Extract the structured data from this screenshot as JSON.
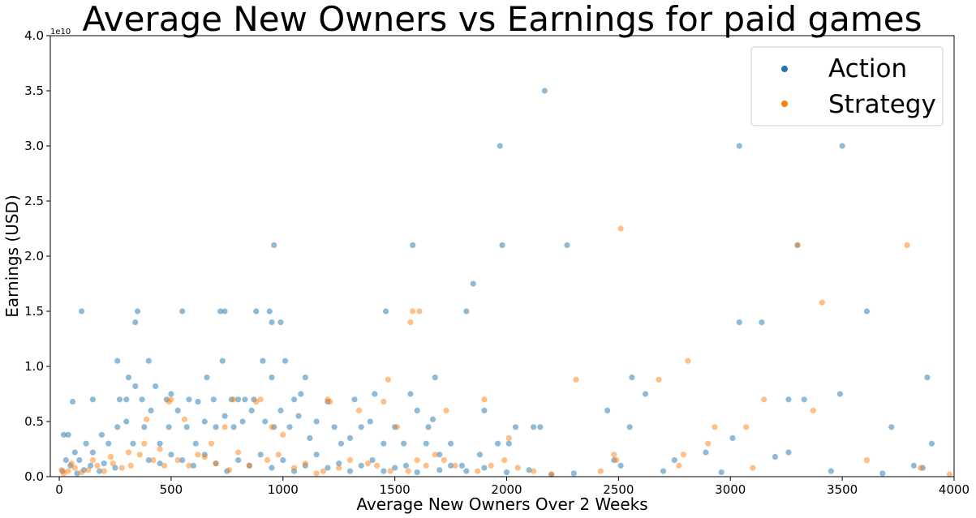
{
  "chart_data": {
    "type": "scatter",
    "title": "Average New Owners vs Earnings for paid games",
    "xlabel": "Average New Owners Over 2 Weeks",
    "ylabel": "Earnings (USD)",
    "y_offset_label": "1e10",
    "xlim": [
      -40,
      4000
    ],
    "ylim": [
      0,
      4.0
    ],
    "xticks": [
      0,
      500,
      1000,
      1500,
      2000,
      2500,
      3000,
      3500,
      4000
    ],
    "yticks": [
      0.0,
      0.5,
      1.0,
      1.5,
      2.0,
      2.5,
      3.0,
      3.5,
      4.0
    ],
    "ytick_labels": [
      "0.0",
      "0.5",
      "1.0",
      "1.5",
      "2.0",
      "2.5",
      "3.0",
      "3.5",
      "4.0"
    ],
    "grid": false,
    "legend_position": "top-right",
    "series": [
      {
        "name": "Action",
        "color": "#1f77b4",
        "points": [
          [
            100,
            1.5
          ],
          [
            350,
            1.5
          ],
          [
            340,
            1.4
          ],
          [
            550,
            1.5
          ],
          [
            720,
            1.5
          ],
          [
            740,
            1.5
          ],
          [
            880,
            1.5
          ],
          [
            940,
            1.5
          ],
          [
            960,
            2.1
          ],
          [
            950,
            1.4
          ],
          [
            990,
            1.4
          ],
          [
            260,
            1.05
          ],
          [
            400,
            1.05
          ],
          [
            730,
            1.05
          ],
          [
            910,
            1.05
          ],
          [
            1010,
            1.05
          ],
          [
            310,
            0.9
          ],
          [
            660,
            0.9
          ],
          [
            950,
            0.9
          ],
          [
            1100,
            0.9
          ],
          [
            340,
            0.82
          ],
          [
            430,
            0.82
          ],
          [
            60,
            0.68
          ],
          [
            40,
            0.38
          ],
          [
            20,
            0.38
          ],
          [
            150,
            0.7
          ],
          [
            270,
            0.7
          ],
          [
            300,
            0.7
          ],
          [
            370,
            0.7
          ],
          [
            480,
            0.7
          ],
          [
            500,
            0.75
          ],
          [
            580,
            0.7
          ],
          [
            620,
            0.68
          ],
          [
            690,
            0.7
          ],
          [
            770,
            0.7
          ],
          [
            800,
            0.7
          ],
          [
            830,
            0.7
          ],
          [
            870,
            0.7
          ],
          [
            1050,
            0.7
          ],
          [
            1080,
            0.75
          ],
          [
            1200,
            0.68
          ],
          [
            1320,
            0.7
          ],
          [
            1410,
            0.75
          ],
          [
            1460,
            1.5
          ],
          [
            1570,
            0.75
          ],
          [
            1580,
            2.1
          ],
          [
            1650,
            0.45
          ],
          [
            1670,
            0.52
          ],
          [
            1680,
            0.9
          ],
          [
            1820,
            1.5
          ],
          [
            1850,
            1.75
          ],
          [
            1970,
            3.0
          ],
          [
            1980,
            2.1
          ],
          [
            2170,
            3.5
          ],
          [
            2120,
            0.45
          ],
          [
            2150,
            0.45
          ],
          [
            2270,
            2.1
          ],
          [
            2450,
            0.6
          ],
          [
            2560,
            0.9
          ],
          [
            2620,
            0.75
          ],
          [
            2550,
            0.45
          ],
          [
            3040,
            3.0
          ],
          [
            3040,
            1.4
          ],
          [
            3140,
            1.4
          ],
          [
            3300,
            2.1
          ],
          [
            3500,
            3.0
          ],
          [
            3610,
            1.5
          ],
          [
            3490,
            0.75
          ],
          [
            3260,
            0.7
          ],
          [
            3330,
            0.7
          ],
          [
            3720,
            0.45
          ],
          [
            3880,
            0.9
          ],
          [
            3900,
            0.3
          ],
          [
            3010,
            0.35
          ],
          [
            2890,
            0.22
          ],
          [
            3260,
            0.22
          ],
          [
            3200,
            0.18
          ],
          [
            2750,
            0.15
          ],
          [
            2510,
            0.1
          ],
          [
            2700,
            0.05
          ],
          [
            2960,
            0.04
          ],
          [
            3450,
            0.05
          ],
          [
            3680,
            0.03
          ],
          [
            3820,
            0.1
          ],
          [
            3860,
            0.08
          ],
          [
            2040,
            0.45
          ],
          [
            2010,
            0.3
          ],
          [
            1960,
            0.3
          ],
          [
            1900,
            0.6
          ],
          [
            1880,
            0.2
          ],
          [
            1800,
            0.1
          ],
          [
            1750,
            0.3
          ],
          [
            1700,
            0.2
          ],
          [
            1640,
            0.3
          ],
          [
            1600,
            0.6
          ],
          [
            1540,
            0.3
          ],
          [
            1500,
            0.45
          ],
          [
            1450,
            0.3
          ],
          [
            1390,
            0.5
          ],
          [
            1350,
            0.45
          ],
          [
            1300,
            0.35
          ],
          [
            1260,
            0.3
          ],
          [
            1230,
            0.45
          ],
          [
            1150,
            0.5
          ],
          [
            1120,
            0.35
          ],
          [
            1070,
            0.55
          ],
          [
            1030,
            0.45
          ],
          [
            990,
            0.6
          ],
          [
            960,
            0.45
          ],
          [
            920,
            0.5
          ],
          [
            860,
            0.6
          ],
          [
            820,
            0.5
          ],
          [
            780,
            0.45
          ],
          [
            740,
            0.55
          ],
          [
            700,
            0.45
          ],
          [
            650,
            0.5
          ],
          [
            610,
            0.3
          ],
          [
            570,
            0.45
          ],
          [
            530,
            0.6
          ],
          [
            490,
            0.45
          ],
          [
            450,
            0.3
          ],
          [
            410,
            0.6
          ],
          [
            380,
            0.45
          ],
          [
            330,
            0.3
          ],
          [
            300,
            0.5
          ],
          [
            260,
            0.45
          ],
          [
            220,
            0.3
          ],
          [
            190,
            0.38
          ],
          [
            150,
            0.22
          ],
          [
            120,
            0.3
          ],
          [
            90,
            0.15
          ],
          [
            70,
            0.22
          ],
          [
            50,
            0.1
          ],
          [
            30,
            0.15
          ],
          [
            15,
            0.05
          ],
          [
            400,
            0.15
          ],
          [
            450,
            0.12
          ],
          [
            500,
            0.2
          ],
          [
            550,
            0.15
          ],
          [
            600,
            0.1
          ],
          [
            650,
            0.2
          ],
          [
            700,
            0.12
          ],
          [
            750,
            0.05
          ],
          [
            800,
            0.15
          ],
          [
            850,
            0.1
          ],
          [
            900,
            0.2
          ],
          [
            950,
            0.08
          ],
          [
            1000,
            0.15
          ],
          [
            1050,
            0.05
          ],
          [
            1100,
            0.1
          ],
          [
            1150,
            0.2
          ],
          [
            1200,
            0.08
          ],
          [
            1250,
            0.12
          ],
          [
            1300,
            0.05
          ],
          [
            1350,
            0.1
          ],
          [
            1400,
            0.15
          ],
          [
            1450,
            0.05
          ],
          [
            1500,
            0.08
          ],
          [
            1550,
            0.1
          ],
          [
            1600,
            0.04
          ],
          [
            1700,
            0.06
          ],
          [
            1750,
            0.1
          ],
          [
            1820,
            0.05
          ],
          [
            1900,
            0.08
          ],
          [
            2000,
            0.04
          ],
          [
            2100,
            0.06
          ],
          [
            2200,
            0.02
          ],
          [
            2300,
            0.03
          ],
          [
            2480,
            0.15
          ],
          [
            250,
            0.08
          ],
          [
            200,
            0.12
          ],
          [
            180,
            0.05
          ],
          [
            140,
            0.1
          ],
          [
            110,
            0.06
          ],
          [
            80,
            0.03
          ]
        ]
      },
      {
        "name": "Strategy",
        "color": "#ff7f0e",
        "points": [
          [
            2510,
            2.25
          ],
          [
            3790,
            2.1
          ],
          [
            3300,
            2.1
          ],
          [
            3410,
            1.58
          ],
          [
            2810,
            1.05
          ],
          [
            2310,
            0.88
          ],
          [
            2680,
            0.88
          ],
          [
            1470,
            0.88
          ],
          [
            1570,
            1.4
          ],
          [
            1580,
            1.5
          ],
          [
            1610,
            1.5
          ],
          [
            1450,
            0.68
          ],
          [
            1900,
            0.7
          ],
          [
            1730,
            0.6
          ],
          [
            1510,
            0.45
          ],
          [
            1340,
            0.6
          ],
          [
            1200,
            0.7
          ],
          [
            1210,
            0.68
          ],
          [
            1000,
            0.38
          ],
          [
            950,
            0.45
          ],
          [
            900,
            0.7
          ],
          [
            880,
            0.68
          ],
          [
            780,
            0.7
          ],
          [
            740,
            0.45
          ],
          [
            680,
            0.3
          ],
          [
            560,
            0.52
          ],
          [
            500,
            0.7
          ],
          [
            490,
            0.68
          ],
          [
            390,
            0.52
          ],
          [
            380,
            0.3
          ],
          [
            2930,
            0.45
          ],
          [
            2900,
            0.3
          ],
          [
            3150,
            0.7
          ],
          [
            3070,
            0.45
          ],
          [
            3370,
            0.6
          ],
          [
            3850,
            0.08
          ],
          [
            3610,
            0.15
          ],
          [
            3980,
            0.02
          ],
          [
            3100,
            0.08
          ],
          [
            2770,
            0.1
          ],
          [
            2790,
            0.2
          ],
          [
            2480,
            0.2
          ],
          [
            2490,
            0.15
          ],
          [
            2420,
            0.05
          ],
          [
            2200,
            0.02
          ],
          [
            2120,
            0.05
          ],
          [
            2050,
            0.08
          ],
          [
            2010,
            0.35
          ],
          [
            1990,
            0.15
          ],
          [
            1930,
            0.1
          ],
          [
            1870,
            0.05
          ],
          [
            1770,
            0.1
          ],
          [
            1720,
            0.15
          ],
          [
            1680,
            0.2
          ],
          [
            1640,
            0.1
          ],
          [
            1600,
            0.15
          ],
          [
            1560,
            0.05
          ],
          [
            1480,
            0.05
          ],
          [
            1420,
            0.1
          ],
          [
            1380,
            0.12
          ],
          [
            1300,
            0.15
          ],
          [
            1250,
            0.08
          ],
          [
            1180,
            0.05
          ],
          [
            1100,
            0.12
          ],
          [
            1050,
            0.08
          ],
          [
            980,
            0.2
          ],
          [
            930,
            0.15
          ],
          [
            850,
            0.1
          ],
          [
            800,
            0.22
          ],
          [
            700,
            0.12
          ],
          [
            620,
            0.2
          ],
          [
            580,
            0.1
          ],
          [
            530,
            0.15
          ],
          [
            470,
            0.1
          ],
          [
            420,
            0.15
          ],
          [
            360,
            0.2
          ],
          [
            320,
            0.1
          ],
          [
            280,
            0.08
          ],
          [
            240,
            0.12
          ],
          [
            200,
            0.05
          ],
          [
            170,
            0.1
          ],
          [
            130,
            0.06
          ],
          [
            100,
            0.04
          ],
          [
            70,
            0.08
          ],
          [
            40,
            0.05
          ],
          [
            20,
            0.03
          ],
          [
            10,
            0.06
          ],
          [
            55,
            0.12
          ],
          [
            150,
            0.15
          ],
          [
            230,
            0.18
          ],
          [
            310,
            0.22
          ],
          [
            450,
            0.25
          ],
          [
            650,
            0.18
          ],
          [
            760,
            0.06
          ],
          [
            1150,
            0.03
          ]
        ]
      }
    ]
  }
}
